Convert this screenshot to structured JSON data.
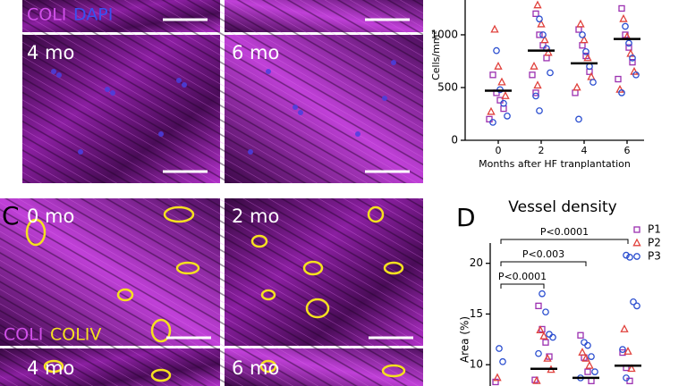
{
  "panels": {
    "top_stain": [
      "COLI",
      "DAPI"
    ],
    "top_left_label": "4 mo",
    "top_right_label": "6 mo",
    "panel_c_letter": "C",
    "c_labels": [
      "0 mo",
      "2 mo",
      "4 mo",
      "6 mo"
    ],
    "c_stain": [
      "COLI",
      "COLIV"
    ]
  },
  "chart_data": [
    {
      "type": "scatter",
      "y_label": "Cells/mm²",
      "x_label": "Months after HF tranplantation",
      "categories": [
        0,
        2,
        4,
        6
      ],
      "ylim": [
        0,
        1330
      ],
      "yticks": [
        0,
        500,
        1000
      ],
      "means": [
        470,
        850,
        730,
        960
      ],
      "series": [
        {
          "name": "P1",
          "marker": "square",
          "color": "#9b30b0",
          "x": [
            0,
            0,
            0,
            0,
            0,
            2,
            2,
            2,
            2,
            2,
            2,
            4,
            4,
            4,
            4,
            4,
            6,
            6,
            6,
            6,
            6
          ],
          "y": [
            620,
            450,
            380,
            300,
            200,
            1200,
            1000,
            900,
            780,
            620,
            450,
            1050,
            900,
            800,
            650,
            450,
            1250,
            1000,
            880,
            740,
            580
          ]
        },
        {
          "name": "P2",
          "marker": "triangle",
          "color": "#e0413c",
          "x": [
            0,
            0,
            0,
            0,
            0,
            2,
            2,
            2,
            2,
            2,
            2,
            4,
            4,
            4,
            4,
            4,
            6,
            6,
            6,
            6,
            6
          ],
          "y": [
            1050,
            700,
            550,
            420,
            270,
            1280,
            1100,
            950,
            830,
            700,
            520,
            1100,
            950,
            780,
            600,
            500,
            1150,
            980,
            820,
            650,
            480
          ]
        },
        {
          "name": "P3",
          "marker": "circle",
          "color": "#2c4fd0",
          "x": [
            0,
            0,
            0,
            0,
            0,
            2,
            2,
            2,
            2,
            2,
            2,
            4,
            4,
            4,
            4,
            4,
            6,
            6,
            6,
            6,
            6
          ],
          "y": [
            850,
            480,
            350,
            230,
            170,
            1150,
            1000,
            870,
            640,
            420,
            280,
            1000,
            840,
            700,
            550,
            200,
            1080,
            920,
            780,
            620,
            450
          ]
        }
      ]
    },
    {
      "type": "scatter",
      "letter": "D",
      "title": "Vessel density",
      "y_label": "Area (%)",
      "categories": [
        0,
        2,
        4,
        6
      ],
      "ylim": [
        7.9,
        22
      ],
      "yticks": [
        10,
        15,
        20
      ],
      "means": [
        null,
        9.6,
        8.7,
        9.9
      ],
      "comparisons": [
        {
          "from": 0,
          "to": 6,
          "label": "P<0.0001"
        },
        {
          "from": 0,
          "to": 4,
          "label": "P<0.003"
        },
        {
          "from": 0,
          "to": 2,
          "label": "P<0.0001"
        }
      ],
      "legend": "top-right",
      "series": [
        {
          "name": "P1",
          "marker": "square",
          "color": "#9b30b0",
          "x": [
            0,
            2,
            2,
            2,
            2,
            2,
            4,
            4,
            4,
            4,
            6,
            6,
            6
          ],
          "y": [
            8.3,
            15.8,
            13.5,
            12.2,
            10.8,
            8.5,
            12.9,
            10.7,
            9.3,
            8.4,
            11.2,
            9.7,
            8.4
          ]
        },
        {
          "name": "P2",
          "marker": "triangle",
          "color": "#e0413c",
          "x": [
            0,
            2,
            2,
            2,
            2,
            2,
            4,
            4,
            4,
            6,
            6,
            6
          ],
          "y": [
            8.7,
            13.4,
            12.8,
            10.6,
            9.5,
            8.4,
            11.2,
            10.6,
            9.9,
            13.5,
            11.3,
            9.6
          ]
        },
        {
          "name": "P3",
          "marker": "circle",
          "color": "#2c4fd0",
          "x": [
            0,
            0,
            2,
            2,
            2,
            2,
            2,
            4,
            4,
            4,
            4,
            4,
            6,
            6,
            6,
            6,
            6,
            6
          ],
          "y": [
            11.6,
            10.3,
            17.0,
            15.2,
            13.0,
            12.7,
            11.1,
            12.2,
            11.9,
            10.8,
            9.3,
            8.7,
            20.8,
            20.6,
            16.2,
            15.8,
            11.5,
            8.7
          ]
        }
      ]
    }
  ]
}
